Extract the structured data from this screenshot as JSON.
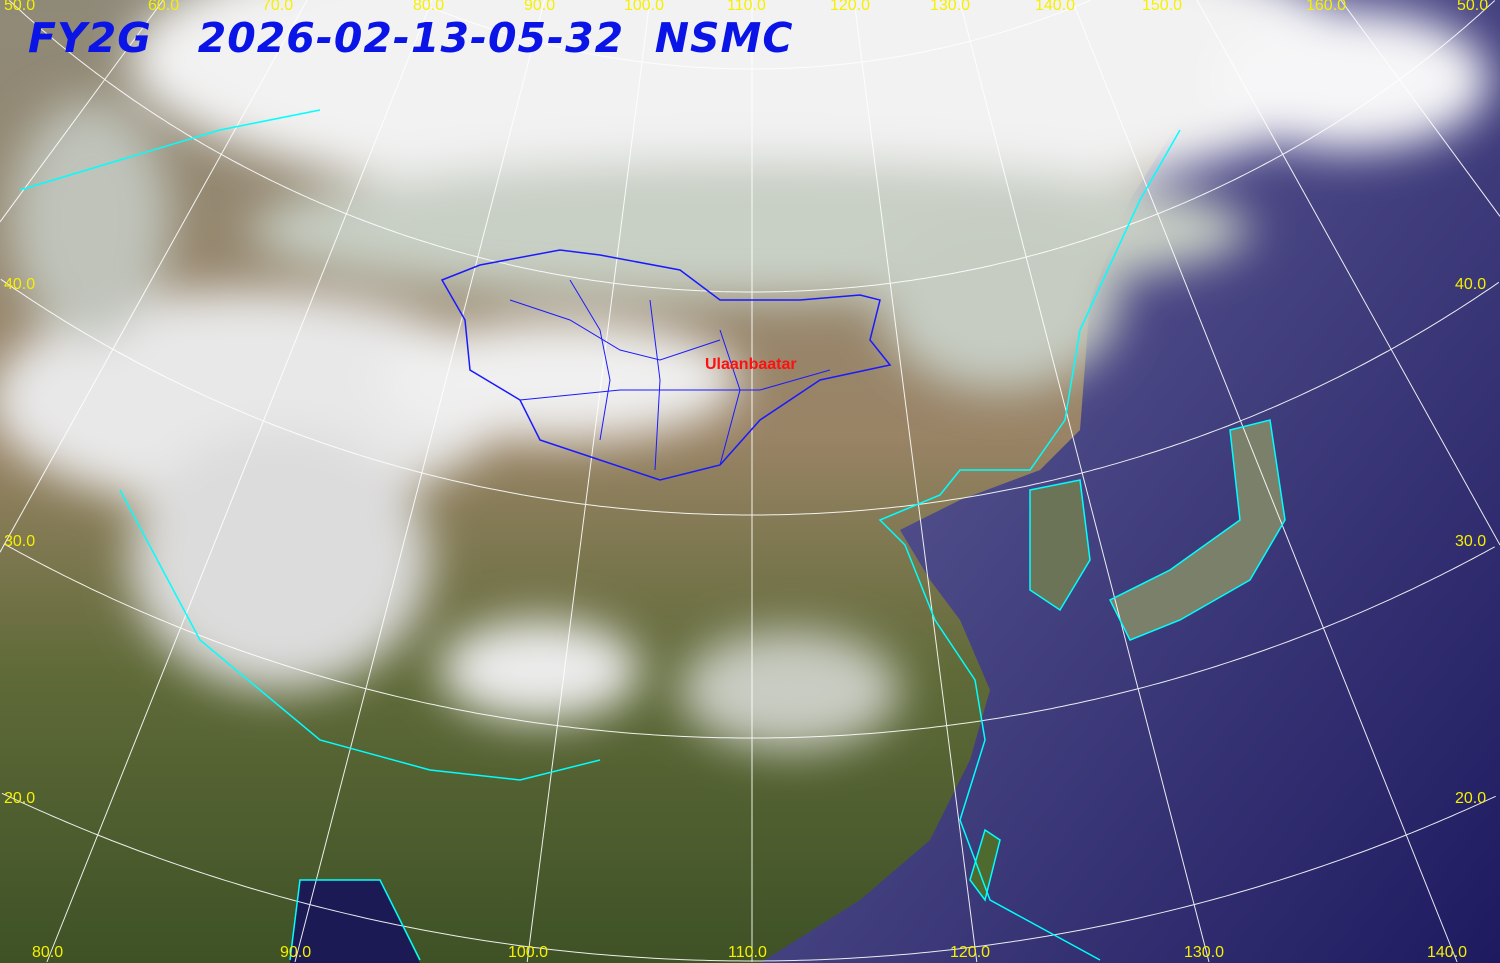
{
  "title": {
    "satellite": "FY2G",
    "datetime": "2026-02-13-05-32",
    "agency": "NSMC"
  },
  "top_longitude_labels": [
    "50.0",
    "60.0",
    "70.0",
    "80.0",
    "90.0",
    "100.0",
    "110.0",
    "120.0",
    "130.0",
    "140.0",
    "150.0",
    "160.0",
    "50.0"
  ],
  "bottom_longitude_labels": [
    "80.0",
    "90.0",
    "100.0",
    "110.0",
    "120.0",
    "130.0",
    "140.0"
  ],
  "left_latitude_labels": [
    "40.0",
    "30.0",
    "20.0"
  ],
  "right_latitude_labels": [
    "40.0",
    "30.0",
    "20.0"
  ],
  "city_label": "Ulaanbaatar",
  "colors": {
    "title": "#0a14e6",
    "grid_labels": "#f5f000",
    "coastline": "#00ffff",
    "mongolia_borders": "#1a1aff",
    "city": "#ff1010",
    "ocean": "#2a2470",
    "land": "#6b6a45",
    "cloud": "#f4f4f4"
  }
}
